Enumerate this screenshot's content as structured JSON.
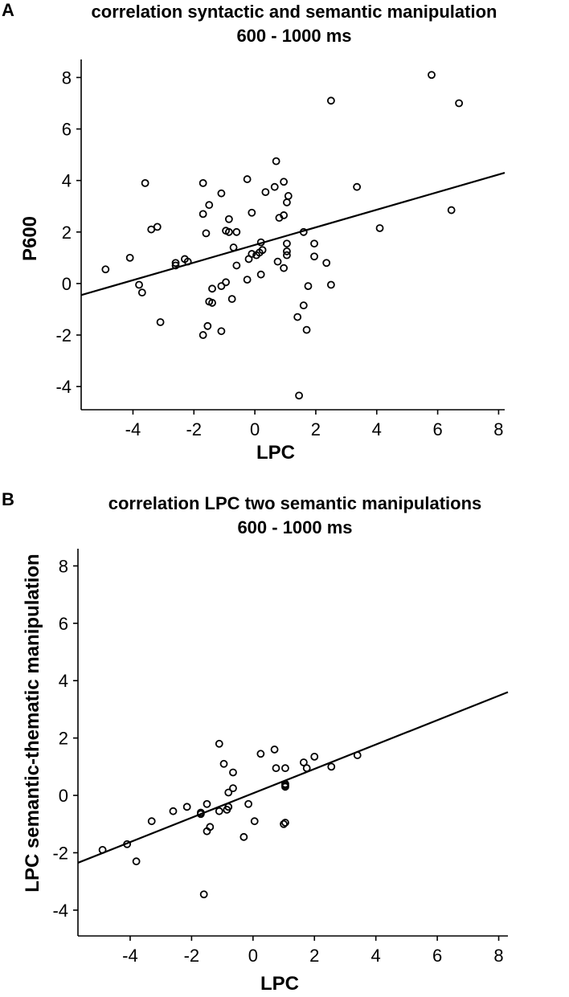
{
  "chart_data": [
    {
      "panel": "A",
      "type": "scatter",
      "title": "correlation syntactic and semantic manipulation",
      "subtitle": "600 - 1000 ms",
      "xlabel": "LPC",
      "ylabel": "P600",
      "xlim": [
        -5.7,
        8.2
      ],
      "ylim": [
        -4.9,
        8.7
      ],
      "xticks": [
        -4,
        -2,
        0,
        2,
        4,
        6,
        8
      ],
      "yticks": [
        -4,
        -2,
        0,
        2,
        4,
        6,
        8
      ],
      "grid": false,
      "legend": "none",
      "regression_line": {
        "x": [
          -5.7,
          8.2
        ],
        "y": [
          -0.45,
          4.3
        ]
      },
      "points": [
        [
          -4.9,
          0.55
        ],
        [
          -4.1,
          1.0
        ],
        [
          -3.8,
          -0.05
        ],
        [
          -3.7,
          -0.35
        ],
        [
          -3.6,
          3.9
        ],
        [
          -3.4,
          2.1
        ],
        [
          -3.2,
          2.2
        ],
        [
          -3.1,
          -1.5
        ],
        [
          -2.6,
          0.8
        ],
        [
          -2.6,
          0.7
        ],
        [
          -2.3,
          0.95
        ],
        [
          -2.2,
          0.85
        ],
        [
          -1.7,
          -2.0
        ],
        [
          -1.7,
          2.7
        ],
        [
          -1.7,
          3.9
        ],
        [
          -1.6,
          1.95
        ],
        [
          -1.55,
          -1.65
        ],
        [
          -1.5,
          -0.7
        ],
        [
          -1.5,
          3.05
        ],
        [
          -1.4,
          -0.75
        ],
        [
          -1.4,
          -0.2
        ],
        [
          -1.1,
          3.5
        ],
        [
          -1.1,
          -0.1
        ],
        [
          -1.1,
          -1.85
        ],
        [
          -0.95,
          2.05
        ],
        [
          -0.95,
          0.05
        ],
        [
          -0.85,
          2.5
        ],
        [
          -0.85,
          2.0
        ],
        [
          -0.75,
          -0.6
        ],
        [
          -0.7,
          1.4
        ],
        [
          -0.6,
          2.0
        ],
        [
          -0.6,
          0.7
        ],
        [
          -0.25,
          4.05
        ],
        [
          -0.25,
          0.15
        ],
        [
          -0.2,
          0.95
        ],
        [
          -0.1,
          2.75
        ],
        [
          -0.1,
          1.15
        ],
        [
          0.05,
          1.1
        ],
        [
          0.15,
          1.2
        ],
        [
          0.2,
          1.6
        ],
        [
          0.2,
          0.35
        ],
        [
          0.25,
          1.3
        ],
        [
          0.35,
          3.55
        ],
        [
          0.65,
          3.75
        ],
        [
          0.7,
          4.75
        ],
        [
          0.75,
          0.85
        ],
        [
          0.8,
          2.55
        ],
        [
          0.95,
          2.65
        ],
        [
          0.95,
          3.95
        ],
        [
          0.95,
          0.6
        ],
        [
          1.05,
          3.15
        ],
        [
          1.05,
          1.55
        ],
        [
          1.05,
          1.25
        ],
        [
          1.05,
          1.1
        ],
        [
          1.1,
          3.4
        ],
        [
          1.4,
          -1.3
        ],
        [
          1.45,
          -4.35
        ],
        [
          1.6,
          2.0
        ],
        [
          1.6,
          -0.85
        ],
        [
          1.7,
          -1.8
        ],
        [
          1.75,
          -0.1
        ],
        [
          1.95,
          1.55
        ],
        [
          1.95,
          1.05
        ],
        [
          2.35,
          0.8
        ],
        [
          2.5,
          7.1
        ],
        [
          2.5,
          -0.05
        ],
        [
          3.35,
          3.75
        ],
        [
          4.1,
          2.15
        ],
        [
          5.8,
          8.1
        ],
        [
          6.45,
          2.85
        ],
        [
          6.7,
          7.0
        ]
      ]
    },
    {
      "panel": "B",
      "type": "scatter",
      "title": "correlation LPC two semantic manipulations",
      "subtitle": "600 - 1000 ms",
      "xlabel": "LPC",
      "ylabel": "LPC semantic-thematic manipulation",
      "xlim": [
        -5.7,
        8.3
      ],
      "ylim": [
        -4.9,
        8.6
      ],
      "xticks": [
        -4,
        -2,
        0,
        2,
        4,
        6,
        8
      ],
      "yticks": [
        -4,
        -2,
        0,
        2,
        4,
        6,
        8
      ],
      "grid": false,
      "legend": "none",
      "regression_line": {
        "x": [
          -5.7,
          8.3
        ],
        "y": [
          -2.35,
          3.6
        ]
      },
      "points": [
        [
          -4.9,
          -1.9
        ],
        [
          -4.1,
          -1.7
        ],
        [
          -3.8,
          -2.3
        ],
        [
          -3.3,
          -0.9
        ],
        [
          -2.6,
          -0.55
        ],
        [
          -2.15,
          -0.4
        ],
        [
          -1.7,
          -0.6
        ],
        [
          -1.7,
          -0.65
        ],
        [
          -1.6,
          -3.45
        ],
        [
          -1.5,
          -0.3
        ],
        [
          -1.5,
          -1.25
        ],
        [
          -1.4,
          -1.1
        ],
        [
          -1.1,
          -0.55
        ],
        [
          -1.1,
          1.8
        ],
        [
          -0.95,
          1.1
        ],
        [
          -0.85,
          -0.5
        ],
        [
          -0.8,
          0.1
        ],
        [
          -0.8,
          -0.4
        ],
        [
          -0.65,
          0.25
        ],
        [
          -0.65,
          0.8
        ],
        [
          -0.3,
          -1.45
        ],
        [
          -0.15,
          -0.3
        ],
        [
          0.05,
          -0.9
        ],
        [
          0.25,
          1.45
        ],
        [
          0.7,
          1.6
        ],
        [
          0.75,
          0.95
        ],
        [
          1.0,
          -1.0
        ],
        [
          1.05,
          -0.95
        ],
        [
          1.05,
          0.3
        ],
        [
          1.05,
          0.4
        ],
        [
          1.05,
          0.95
        ],
        [
          1.05,
          0.35
        ],
        [
          1.65,
          1.15
        ],
        [
          1.75,
          0.95
        ],
        [
          2.0,
          1.35
        ],
        [
          2.55,
          1.0
        ],
        [
          3.4,
          1.4
        ]
      ]
    }
  ]
}
